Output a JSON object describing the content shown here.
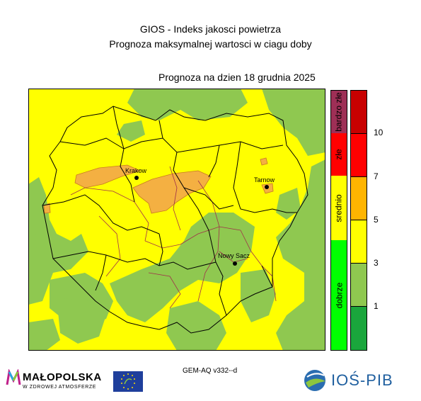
{
  "header": {
    "title_line1": "GIOS - Indeks jakosci powietrza",
    "title_line2": "Prognoza maksymalnej wartosci w ciagu doby",
    "forecast_date": "Prognoza na dzien  18 grudnia 2025"
  },
  "map": {
    "cities": [
      {
        "name": "Krakow"
      },
      {
        "name": "Tarnow"
      },
      {
        "name": "Nowy Sacz"
      }
    ],
    "colors": {
      "background": "#ffff00",
      "good_green": "#8fc850",
      "orange": "#f4b042",
      "border_black": "#000000",
      "border_county": "#a0304a"
    }
  },
  "legend": {
    "categories": [
      {
        "label": "bardzo złe",
        "color": "#9e2f56"
      },
      {
        "label": "złe",
        "color": "#ff0000"
      },
      {
        "label": "srednio",
        "color": "#ffff00"
      },
      {
        "label": "dobrze",
        "color": "#00ff00"
      }
    ],
    "scale": [
      {
        "color": "#c80000"
      },
      {
        "color": "#ff0000"
      },
      {
        "color": "#ffb400"
      },
      {
        "color": "#ffff00"
      },
      {
        "color": "#8fc850"
      },
      {
        "color": "#1aa63c"
      }
    ],
    "ticks": [
      "10",
      "7",
      "5",
      "3",
      "1"
    ]
  },
  "footer": {
    "model": "GEM-AQ v332--d",
    "logo_malopolska": "MAŁOPOLSKA",
    "logo_malopolska_sub": "W ZDROWEJ ATMOSFERZE",
    "logo_ios": "IOŚ-PIB"
  }
}
